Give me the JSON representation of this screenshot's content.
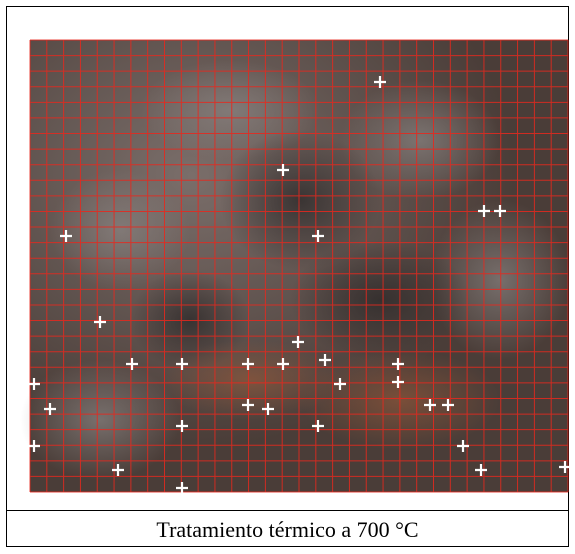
{
  "caption": "Tratamiento térmico a 700 °C"
}
